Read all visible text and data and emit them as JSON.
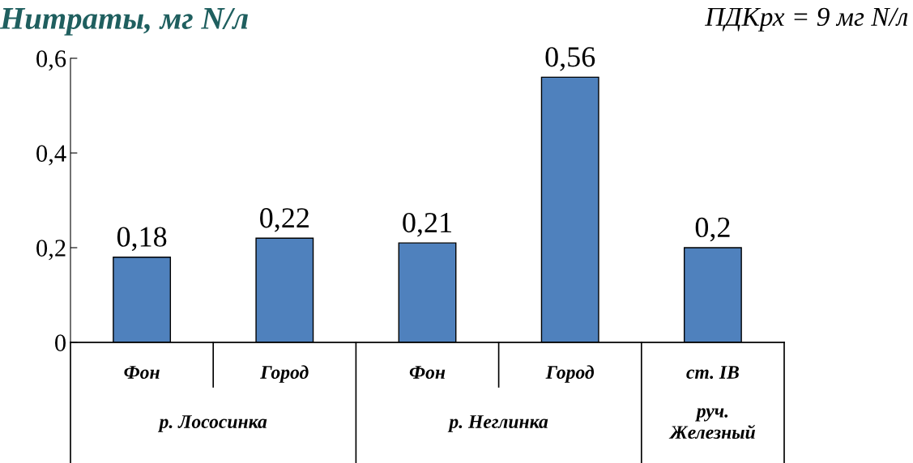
{
  "chart_data": {
    "type": "bar",
    "title": "Нитраты, мг N/л",
    "categories": [
      "Фон",
      "Город",
      "Фон",
      "Город",
      "ст. IB"
    ],
    "values": [
      0.18,
      0.22,
      0.21,
      0.56,
      0.2
    ],
    "value_labels": [
      "0,18",
      "0,22",
      "0,21",
      "0,56",
      "0,2"
    ],
    "color": "#4f81bd",
    "ylim": [
      0,
      0.6
    ],
    "yticks": [
      0,
      {
        "value": 0.2,
        "label": "0,2"
      },
      {
        "value": 0.4,
        "label": "0,4"
      },
      {
        "value": 0.6,
        "label": "0,6"
      }
    ],
    "annotations": [
      "ПДКрх = 9 мг N/л",
      "р. Лососинка",
      "р. Неглинка",
      "руч.\nЖелезный"
    ],
    "grid": false,
    "legend": false
  }
}
